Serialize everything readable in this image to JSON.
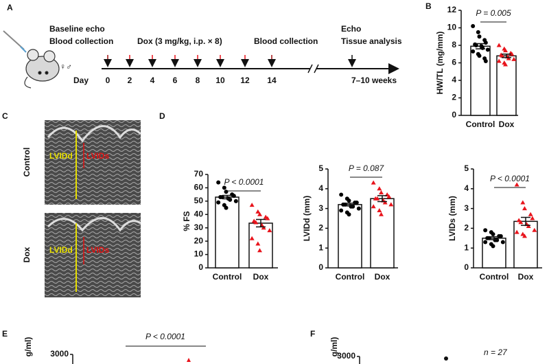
{
  "panel_labels": [
    "A",
    "B",
    "C",
    "D",
    "E",
    "F"
  ],
  "panel_a": {
    "start_lines": [
      "Baseline echo",
      "Blood collection"
    ],
    "sexes": "♀♂",
    "dox": "Dox (3 mg/kg, i.p. × 8)",
    "mid_line": "Blood collection",
    "end_lines": [
      "Echo",
      "Tissue analysis"
    ],
    "day_word": "Day",
    "days": [
      0,
      2,
      4,
      6,
      8,
      10,
      12,
      14
    ],
    "end_time": "7–10 weeks"
  },
  "panel_c": {
    "rows": [
      "Control",
      "Dox"
    ],
    "lvidd": "LVIDd",
    "lvids": "LVIDs"
  },
  "panel_e": {
    "y_label_fragment": "g/ml)",
    "ytick": 3000,
    "p_text": "P < 0.0001"
  },
  "panel_f": {
    "y_label_fragment": "g/ml)",
    "ytick": 3000,
    "n_text": "n = 27"
  },
  "chart_data": [
    {
      "type": "bar",
      "ylabel": "HW/TL (mg/mm)",
      "categories": [
        "Control",
        "Dox"
      ],
      "values": [
        7.9,
        6.8
      ],
      "errors": [
        0.3,
        0.2
      ],
      "points": [
        [
          10.2,
          9.5,
          9.0,
          8.6,
          8.3,
          8.1,
          8.0,
          7.9,
          7.7,
          7.5,
          7.3,
          7.0,
          6.8,
          6.5,
          6.2
        ],
        [
          8.0,
          7.6,
          7.4,
          7.1,
          7.0,
          6.9,
          6.8,
          6.7,
          6.5,
          6.4,
          6.2,
          6.0,
          5.8
        ]
      ],
      "colors": [
        "#000000",
        "#e8141c"
      ],
      "ylim": [
        0,
        12
      ],
      "yticks": [
        0,
        2,
        4,
        6,
        8,
        10,
        12
      ],
      "p_text": "P = 0.005"
    },
    {
      "type": "bar",
      "ylabel": "% FS",
      "categories": [
        "Control",
        "Dox"
      ],
      "values": [
        53,
        33.5
      ],
      "errors": [
        1.3,
        2.8
      ],
      "points": [
        [
          64,
          60,
          57,
          55,
          54,
          53,
          53,
          52,
          51,
          50,
          49,
          47,
          45
        ],
        [
          47,
          42,
          40,
          38,
          37,
          35,
          34,
          32,
          30,
          28,
          22,
          18,
          13
        ]
      ],
      "colors": [
        "#000000",
        "#e8141c"
      ],
      "ylim": [
        0,
        70
      ],
      "yticks": [
        0,
        10,
        20,
        30,
        40,
        50,
        60,
        70
      ],
      "p_text": "P < 0.0001"
    },
    {
      "type": "bar",
      "ylabel": "LVIDd (mm)",
      "categories": [
        "Control",
        "Dox"
      ],
      "values": [
        3.2,
        3.5
      ],
      "errors": [
        0.07,
        0.15
      ],
      "points": [
        [
          3.7,
          3.5,
          3.4,
          3.3,
          3.3,
          3.2,
          3.2,
          3.1,
          3.1,
          3.0,
          2.9,
          2.8,
          2.7
        ],
        [
          4.3,
          4.0,
          3.8,
          3.7,
          3.6,
          3.5,
          3.5,
          3.4,
          3.3,
          3.2,
          3.1,
          2.9,
          2.7
        ]
      ],
      "colors": [
        "#000000",
        "#e8141c"
      ],
      "ylim": [
        0,
        5
      ],
      "yticks": [
        0,
        1,
        2,
        3,
        4,
        5
      ],
      "p_text": "P = 0.087"
    },
    {
      "type": "bar",
      "ylabel": "LVIDs (mm)",
      "categories": [
        "Control",
        "Dox"
      ],
      "values": [
        1.5,
        2.35
      ],
      "errors": [
        0.07,
        0.2
      ],
      "points": [
        [
          1.9,
          1.8,
          1.7,
          1.6,
          1.6,
          1.5,
          1.5,
          1.4,
          1.4,
          1.3,
          1.3,
          1.2,
          1.1
        ],
        [
          4.2,
          3.3,
          3.0,
          2.7,
          2.5,
          2.4,
          2.3,
          2.2,
          2.1,
          1.9,
          1.8,
          1.7,
          1.6
        ]
      ],
      "colors": [
        "#000000",
        "#e8141c"
      ],
      "ylim": [
        0,
        5
      ],
      "yticks": [
        0,
        1,
        2,
        3,
        4,
        5
      ],
      "p_text": "P < 0.0001"
    }
  ]
}
